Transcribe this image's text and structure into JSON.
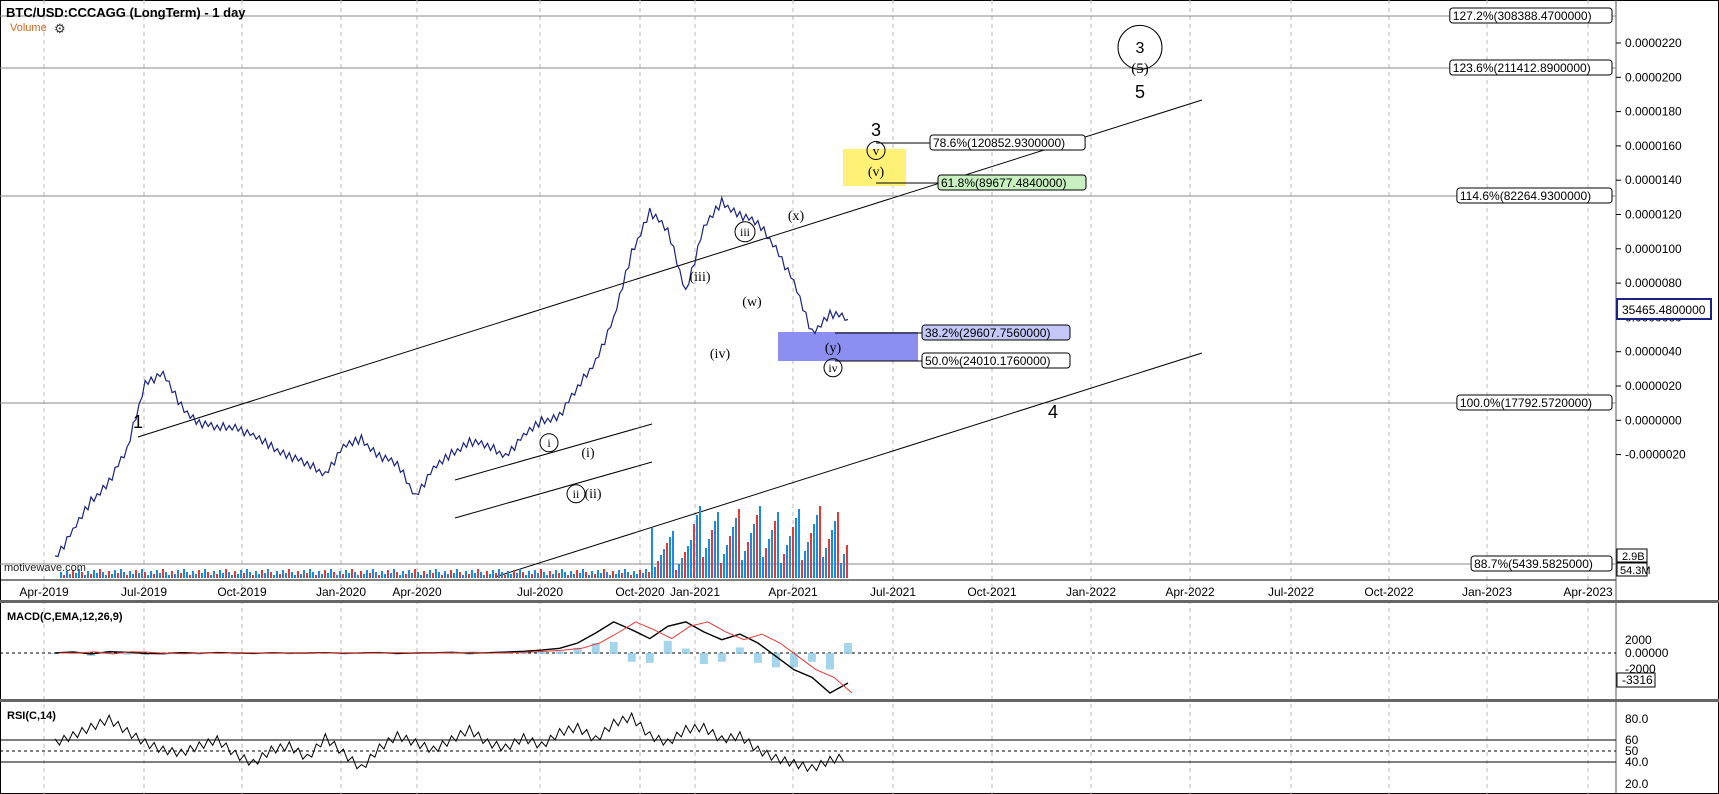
{
  "header": {
    "title": "BTC/USD:CCCAGG (LongTerm) - 1 day",
    "volume_label": "Volume",
    "gear_icon": "gear-icon",
    "watermark": "motivewave.com"
  },
  "chart_data": [
    {
      "type": "line",
      "panel": "price",
      "title": "BTC/USD:CCCAGG (LongTerm) - 1 day",
      "x_ticks": [
        "Apr-2019",
        "Jul-2019",
        "Oct-2019",
        "Jan-2020",
        "Apr-2020",
        "Jul-2020",
        "Oct-2020",
        "Jan-2021",
        "Apr-2021",
        "Jul-2021",
        "Oct-2021",
        "Jan-2022",
        "Apr-2022",
        "Jul-2022",
        "Oct-2022",
        "Jan-2023",
        "Apr-2023"
      ],
      "y_ticks": [
        "0.0000220",
        "0.0000200",
        "0.0000180",
        "0.0000160",
        "0.0000140",
        "0.0000120",
        "0.0000100",
        "0.0000080",
        "0.0000060",
        "0.0000040",
        "0.0000020",
        "0.0000000",
        "-0.0000020"
      ],
      "last_price_label": "35465.4800000",
      "volume_labels": [
        "2.9B",
        "54.3M"
      ],
      "fib_levels": [
        {
          "label": "127.2%(308388.4700000)"
        },
        {
          "label": "123.6%(211412.8900000)"
        },
        {
          "label": "114.6%(82264.9300000)"
        },
        {
          "label": "100.0%(17792.5720000)"
        },
        {
          "label": "88.7%(5439.5825000)"
        }
      ],
      "fib_boxes": [
        {
          "label": "78.6%(120852.9300000)",
          "color": "#ffffff"
        },
        {
          "label": "61.8%(89677.4840000)",
          "color": "#c8f0c0"
        },
        {
          "label": "38.2%(29607.7560000)",
          "color": "#c4c8f8"
        },
        {
          "label": "50.0%(24010.1760000)",
          "color": "#ffffff"
        }
      ],
      "wave_labels": [
        "1",
        "3",
        "4",
        "5",
        "(5)",
        "3",
        "v",
        "(v)",
        "(x)",
        "iii",
        "(iii)",
        "(w)",
        "(iv)",
        "(y)",
        "iv",
        "i",
        "(i)",
        "ii",
        "(ii)"
      ],
      "series": [
        {
          "values": [
            0.05,
            0.12,
            0.2,
            0.26,
            0.34,
            0.53,
            0.55,
            0.46,
            0.42,
            0.4,
            0.41,
            0.38,
            0.35,
            0.33,
            0.3,
            0.28,
            0.35,
            0.37,
            0.33,
            0.3,
            0.22,
            0.29,
            0.33,
            0.37,
            0.35,
            0.33,
            0.38,
            0.42,
            0.44,
            0.51,
            0.59,
            0.7,
            0.88,
            1.0,
            0.94,
            0.78,
            0.95,
            1.02,
            0.99,
            0.96,
            0.9,
            0.8,
            0.66,
            0.72,
            0.7
          ]
        }
      ],
      "colors": {
        "price_line": "#1a237e",
        "up_volume": "#1e88e5",
        "down_volume": "#e53935",
        "highlight_box": "#fff176",
        "retrace_box": "#8c8ff0"
      }
    },
    {
      "type": "line",
      "panel": "macd",
      "title": "MACD(C,EMA,12,26,9)",
      "y_ticks": [
        "2000",
        "0.00000",
        "-2000"
      ],
      "last_value_label": "-3316",
      "series": [
        {
          "name": "",
          "values": [
            0,
            100,
            -80,
            120,
            60,
            -40,
            -60,
            30,
            -20,
            40,
            10,
            -30,
            20,
            -10,
            0,
            30,
            -20,
            10,
            40,
            -30,
            0,
            20,
            60,
            -10,
            30,
            80,
            150,
            260,
            420,
            900,
            1800,
            2800,
            2100,
            1300,
            2400,
            2800,
            1900,
            1200,
            1700,
            900,
            -300,
            -1500,
            -2200,
            -3600,
            -2700
          ]
        }
      ]
    },
    {
      "type": "line",
      "panel": "rsi",
      "title": "RSI(C,14)",
      "y_ticks": [
        "80.0",
        "60",
        "50",
        "40.0",
        "20.0"
      ],
      "levels": [
        60,
        50,
        40
      ],
      "series": [
        {
          "name": "",
          "values": [
            55,
            62,
            70,
            78,
            66,
            55,
            48,
            45,
            52,
            58,
            44,
            35,
            48,
            52,
            40,
            60,
            45,
            30,
            50,
            62,
            55,
            48,
            58,
            68,
            55,
            50,
            60,
            52,
            65,
            70,
            58,
            74,
            80,
            62,
            55,
            68,
            70,
            58,
            62,
            48,
            40,
            35,
            30,
            38,
            42
          ]
        }
      ]
    }
  ]
}
